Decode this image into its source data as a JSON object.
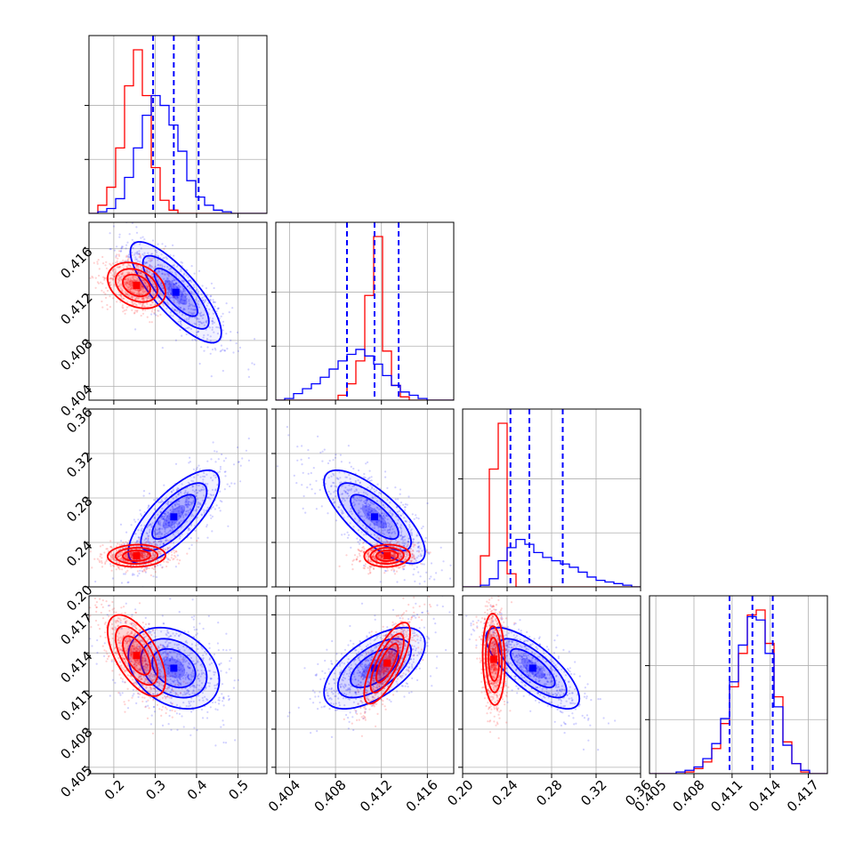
{
  "chart_data": {
    "type": "corner",
    "parameters": 4,
    "colors": {
      "series_a": "#0000ff",
      "series_b": "#ff0000"
    },
    "grid": true,
    "axes": [
      {
        "range": [
          0.14,
          0.57
        ],
        "ticks": [
          "0.2",
          "0.3",
          "0.4",
          "0.5"
        ],
        "tick_values": [
          0.2,
          0.3,
          0.4,
          0.5
        ]
      },
      {
        "range": [
          0.4028,
          0.4183
        ],
        "ticks": [
          "0.404",
          "0.408",
          "0.412",
          "0.416"
        ],
        "tick_values": [
          0.404,
          0.408,
          0.412,
          0.416
        ]
      },
      {
        "range": [
          0.2,
          0.36
        ],
        "ticks": [
          "0.20",
          "0.24",
          "0.28",
          "0.32",
          "0.36"
        ],
        "tick_values": [
          0.2,
          0.24,
          0.28,
          0.32,
          0.36
        ]
      },
      {
        "range": [
          0.4045,
          0.4185
        ],
        "ticks": [
          "0.405",
          "0.408",
          "0.411",
          "0.414",
          "0.417"
        ],
        "tick_values": [
          0.405,
          0.408,
          0.411,
          0.414,
          0.417
        ]
      }
    ],
    "marginals": [
      {
        "axis": 0,
        "quantiles": [
          0.295,
          0.345,
          0.405
        ],
        "series_a_hist": {
          "start": 0.14,
          "width": 0.0215,
          "counts": [
            0,
            1,
            3,
            9,
            22,
            40,
            60,
            72,
            66,
            54,
            38,
            20,
            10,
            5,
            2,
            1,
            0,
            0,
            0,
            0
          ]
        },
        "series_b_hist": {
          "start": 0.14,
          "width": 0.0215,
          "counts": [
            0,
            5,
            16,
            40,
            78,
            100,
            72,
            28,
            8,
            2,
            0,
            0,
            0,
            0,
            0,
            0,
            0,
            0,
            0,
            0
          ]
        }
      },
      {
        "axis": 1,
        "quantiles": [
          0.409,
          0.4114,
          0.4135
        ],
        "series_a_hist": {
          "start": 0.4028,
          "width": 0.000775,
          "counts": [
            0,
            1,
            4,
            7,
            10,
            14,
            19,
            24,
            28,
            31,
            27,
            22,
            15,
            9,
            5,
            3,
            1,
            0,
            0,
            0
          ]
        },
        "series_b_hist": {
          "start": 0.4028,
          "width": 0.000775,
          "counts": [
            0,
            0,
            0,
            0,
            0,
            0,
            0,
            3,
            10,
            24,
            64,
            100,
            30,
            9,
            2,
            0,
            0,
            0,
            0,
            0
          ]
        }
      },
      {
        "axis": 2,
        "quantiles": [
          0.243,
          0.26,
          0.29
        ],
        "series_a_hist": {
          "start": 0.2,
          "width": 0.008,
          "counts": [
            0,
            0,
            1,
            5,
            16,
            24,
            29,
            26,
            21,
            18,
            16,
            14,
            12,
            9,
            6,
            4,
            3,
            2,
            1,
            0
          ]
        },
        "series_b_hist": {
          "start": 0.2,
          "width": 0.008,
          "counts": [
            0,
            0,
            19,
            72,
            100,
            8,
            0,
            0,
            0,
            0,
            0,
            0,
            0,
            0,
            0,
            0,
            0,
            0,
            0,
            0
          ]
        }
      },
      {
        "axis": 3,
        "quantiles": [
          0.4108,
          0.4126,
          0.4142
        ],
        "series_a_hist": {
          "start": 0.4045,
          "width": 0.0007,
          "counts": [
            0,
            0,
            0,
            1,
            2,
            4,
            9,
            18,
            33,
            55,
            77,
            94,
            92,
            72,
            40,
            17,
            6,
            2,
            0,
            0
          ]
        },
        "series_b_hist": {
          "start": 0.4045,
          "width": 0.0007,
          "counts": [
            0,
            0,
            0,
            0,
            1,
            3,
            7,
            15,
            30,
            52,
            72,
            95,
            98,
            78,
            46,
            19,
            6,
            1,
            0,
            0
          ]
        }
      }
    ],
    "joint": [
      {
        "x_axis": 0,
        "y_axis": 1,
        "series_a": {
          "cx": 0.35,
          "cy": 0.4122,
          "sx": 0.055,
          "sy": 0.0022,
          "rho": -0.8
        },
        "series_b": {
          "cx": 0.255,
          "cy": 0.4128,
          "sx": 0.035,
          "sy": 0.001,
          "rho": -0.3
        }
      },
      {
        "x_axis": 0,
        "y_axis": 2,
        "series_a": {
          "cx": 0.345,
          "cy": 0.263,
          "sx": 0.055,
          "sy": 0.021,
          "rho": 0.75
        },
        "series_b": {
          "cx": 0.255,
          "cy": 0.228,
          "sx": 0.035,
          "sy": 0.005,
          "rho": 0.05
        }
      },
      {
        "x_axis": 1,
        "y_axis": 2,
        "series_a": {
          "cx": 0.4114,
          "cy": 0.263,
          "sx": 0.0022,
          "sy": 0.021,
          "rho": -0.75
        },
        "series_b": {
          "cx": 0.4125,
          "cy": 0.228,
          "sx": 0.001,
          "sy": 0.005,
          "rho": 0.05
        }
      },
      {
        "x_axis": 0,
        "y_axis": 3,
        "series_a": {
          "cx": 0.345,
          "cy": 0.4128,
          "sx": 0.055,
          "sy": 0.0016,
          "rho": -0.3
        },
        "series_b": {
          "cx": 0.255,
          "cy": 0.4138,
          "sx": 0.035,
          "sy": 0.0016,
          "rho": -0.6
        }
      },
      {
        "x_axis": 1,
        "y_axis": 3,
        "series_a": {
          "cx": 0.4114,
          "cy": 0.4128,
          "sx": 0.0022,
          "sy": 0.0016,
          "rho": 0.6
        },
        "series_b": {
          "cx": 0.4125,
          "cy": 0.4132,
          "sx": 0.001,
          "sy": 0.0016,
          "rho": 0.75
        }
      },
      {
        "x_axis": 2,
        "y_axis": 3,
        "series_a": {
          "cx": 0.263,
          "cy": 0.4128,
          "sx": 0.021,
          "sy": 0.0016,
          "rho": -0.75
        },
        "series_b": {
          "cx": 0.228,
          "cy": 0.4135,
          "sx": 0.005,
          "sy": 0.0018,
          "rho": -0.1
        }
      }
    ]
  }
}
